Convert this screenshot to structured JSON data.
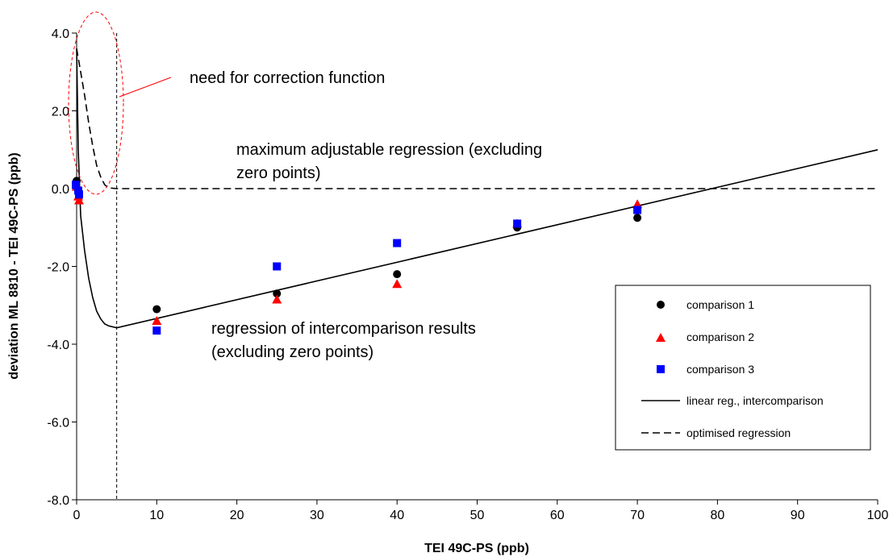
{
  "chart_data": {
    "type": "scatter",
    "xlabel": "TEI 49C-PS (ppb)",
    "ylabel": "deviation ML 8810 - TEI 49C-PS (ppb)",
    "xlim": [
      0,
      100
    ],
    "ylim": [
      -8,
      4
    ],
    "x_ticks": [
      "0",
      "10",
      "20",
      "30",
      "40",
      "50",
      "60",
      "70",
      "80",
      "90",
      "100"
    ],
    "y_ticks": [
      "4.0",
      "2.0",
      "0.0",
      "-2.0",
      "-4.0",
      "-6.0",
      "-8.0"
    ],
    "grid": false,
    "legend_position": "right",
    "series": [
      {
        "name": "comparison 1",
        "marker": "circle",
        "color": "#000000",
        "points": [
          [
            0,
            0.2
          ],
          [
            0.3,
            -0.1
          ],
          [
            0.3,
            -0.2
          ],
          [
            10,
            -3.1
          ],
          [
            25,
            -2.7
          ],
          [
            40,
            -2.2
          ],
          [
            55,
            -1.0
          ],
          [
            70,
            -0.75
          ]
        ]
      },
      {
        "name": "comparison 2",
        "marker": "triangle",
        "color": "#ff0000",
        "points": [
          [
            0,
            0.05
          ],
          [
            0.2,
            -0.2
          ],
          [
            0.3,
            -0.3
          ],
          [
            10,
            -3.4
          ],
          [
            25,
            -2.85
          ],
          [
            40,
            -2.45
          ],
          [
            55,
            -0.9
          ],
          [
            70,
            -0.4
          ]
        ]
      },
      {
        "name": "comparison 3",
        "marker": "square",
        "color": "#0000ff",
        "points": [
          [
            -0.1,
            0.1
          ],
          [
            0.2,
            -0.05
          ],
          [
            0.3,
            -0.15
          ],
          [
            10,
            -3.65
          ],
          [
            25,
            -2.0
          ],
          [
            40,
            -1.4
          ],
          [
            55,
            -0.9
          ],
          [
            70,
            -0.55
          ]
        ]
      },
      {
        "name": "linear reg., intercomparison",
        "style": "solid",
        "color": "#000000",
        "points": [
          [
            0,
            3.6
          ],
          [
            0.2,
            1.0
          ],
          [
            0.5,
            -0.7
          ],
          [
            1.0,
            -1.6
          ],
          [
            1.5,
            -2.3
          ],
          [
            2.0,
            -2.8
          ],
          [
            2.5,
            -3.15
          ],
          [
            3.0,
            -3.35
          ],
          [
            3.5,
            -3.48
          ],
          [
            4.0,
            -3.53
          ],
          [
            5.0,
            -3.58
          ],
          [
            100,
            1.0
          ]
        ]
      },
      {
        "name": "optimised regression",
        "style": "dashed",
        "color": "#000000",
        "points": [
          [
            0,
            3.6
          ],
          [
            0.5,
            3.0
          ],
          [
            1.0,
            2.4
          ],
          [
            1.5,
            1.7
          ],
          [
            2.0,
            1.1
          ],
          [
            2.5,
            0.6
          ],
          [
            3.0,
            0.3
          ],
          [
            3.5,
            0.1
          ],
          [
            4.0,
            0.02
          ],
          [
            5.0,
            0.0
          ],
          [
            100,
            0.0
          ]
        ]
      }
    ],
    "reference_lines": [
      {
        "orientation": "vertical",
        "x": 5,
        "style": "dashed"
      }
    ],
    "annotations": [
      {
        "text": "need for correction function"
      },
      {
        "text": "maximum adjustable regression (excluding",
        "text2": "zero points)"
      },
      {
        "text": "regression of intercomparison results",
        "text2": "(excluding zero points)"
      }
    ]
  }
}
